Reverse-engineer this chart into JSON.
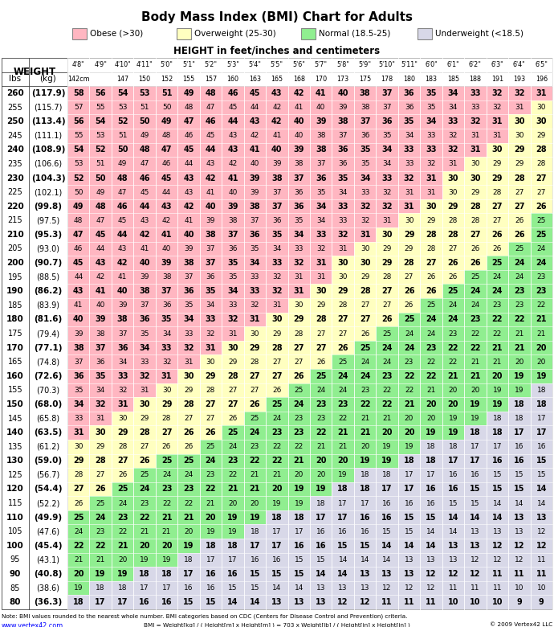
{
  "title": "Body Mass Index (BMI) Chart for Adults",
  "height_labels": [
    "4'8\"",
    "4'9\"",
    "4'10\"",
    "4'11\"",
    "5'0\"",
    "5'1\"",
    "5'2\"",
    "5'3\"",
    "5'4\"",
    "5'5\"",
    "5'6\"",
    "5'7\"",
    "5'8\"",
    "5'9\"",
    "5'10\"",
    "5'11\"",
    "6'0\"",
    "6'1\"",
    "6'2\"",
    "6'3\"",
    "6'4\"",
    "6'5\""
  ],
  "height_cm": [
    "142cm",
    "",
    "147",
    "150",
    "152",
    "155",
    "157",
    "160",
    "163",
    "165",
    "168",
    "170",
    "173",
    "175",
    "178",
    "180",
    "183",
    "185",
    "188",
    "191",
    "193",
    "196"
  ],
  "weight_lbs": [
    260,
    255,
    250,
    245,
    240,
    235,
    230,
    225,
    220,
    215,
    210,
    205,
    200,
    195,
    190,
    185,
    180,
    175,
    170,
    165,
    160,
    155,
    150,
    145,
    140,
    135,
    130,
    125,
    120,
    115,
    110,
    105,
    100,
    95,
    90,
    85,
    80
  ],
  "weight_kg": [
    "117.9",
    "115.7",
    "113.4",
    "111.1",
    "108.9",
    "106.6",
    "104.3",
    "102.1",
    "99.8",
    "97.5",
    "95.3",
    "93.0",
    "90.7",
    "88.5",
    "86.2",
    "83.9",
    "81.6",
    "79.4",
    "77.1",
    "74.8",
    "72.6",
    "70.3",
    "68.0",
    "65.8",
    "63.5",
    "61.2",
    "59.0",
    "56.7",
    "54.4",
    "52.2",
    "49.9",
    "47.6",
    "45.4",
    "43.1",
    "40.8",
    "38.6",
    "36.3"
  ],
  "bold_rows": [
    260,
    250,
    240,
    230,
    220,
    210,
    200,
    190,
    180,
    170,
    160,
    150,
    140,
    130,
    120,
    110,
    100,
    90,
    80
  ],
  "bmi_values": [
    [
      58,
      56,
      54,
      53,
      51,
      49,
      48,
      46,
      45,
      43,
      42,
      41,
      40,
      38,
      37,
      36,
      35,
      34,
      33,
      32,
      32,
      31
    ],
    [
      57,
      55,
      53,
      51,
      50,
      48,
      47,
      45,
      44,
      42,
      41,
      40,
      39,
      38,
      37,
      36,
      35,
      34,
      33,
      32,
      31,
      30
    ],
    [
      56,
      54,
      52,
      50,
      49,
      47,
      46,
      44,
      43,
      42,
      40,
      39,
      38,
      37,
      36,
      35,
      34,
      33,
      32,
      31,
      30,
      30
    ],
    [
      55,
      53,
      51,
      49,
      48,
      46,
      45,
      43,
      42,
      41,
      40,
      38,
      37,
      36,
      35,
      34,
      33,
      32,
      31,
      31,
      30,
      29
    ],
    [
      54,
      52,
      50,
      48,
      47,
      45,
      44,
      43,
      41,
      40,
      39,
      38,
      36,
      35,
      34,
      33,
      33,
      32,
      31,
      30,
      29,
      28
    ],
    [
      53,
      51,
      49,
      47,
      46,
      44,
      43,
      42,
      40,
      39,
      38,
      37,
      36,
      35,
      34,
      33,
      32,
      31,
      30,
      29,
      29,
      28
    ],
    [
      52,
      50,
      48,
      46,
      45,
      43,
      42,
      41,
      39,
      38,
      37,
      36,
      35,
      34,
      33,
      32,
      31,
      30,
      30,
      29,
      28,
      27
    ],
    [
      50,
      49,
      47,
      45,
      44,
      43,
      41,
      40,
      39,
      37,
      36,
      35,
      34,
      33,
      32,
      31,
      31,
      30,
      29,
      28,
      27,
      27
    ],
    [
      49,
      48,
      46,
      44,
      43,
      42,
      40,
      39,
      38,
      37,
      36,
      34,
      33,
      32,
      32,
      31,
      30,
      29,
      28,
      27,
      27,
      26
    ],
    [
      48,
      47,
      45,
      43,
      42,
      41,
      39,
      38,
      37,
      36,
      35,
      34,
      33,
      32,
      31,
      30,
      29,
      28,
      28,
      27,
      26,
      25
    ],
    [
      47,
      45,
      44,
      42,
      41,
      40,
      38,
      37,
      36,
      35,
      34,
      33,
      32,
      31,
      30,
      29,
      28,
      28,
      27,
      26,
      26,
      25
    ],
    [
      46,
      44,
      43,
      41,
      40,
      39,
      37,
      36,
      35,
      34,
      33,
      32,
      31,
      30,
      29,
      29,
      28,
      27,
      26,
      26,
      25,
      24
    ],
    [
      45,
      43,
      42,
      40,
      39,
      38,
      37,
      35,
      34,
      33,
      32,
      31,
      30,
      30,
      29,
      28,
      27,
      26,
      26,
      25,
      24,
      24
    ],
    [
      44,
      42,
      41,
      39,
      38,
      37,
      36,
      35,
      33,
      32,
      31,
      31,
      30,
      29,
      28,
      27,
      26,
      26,
      25,
      24,
      24,
      23
    ],
    [
      43,
      41,
      40,
      38,
      37,
      36,
      35,
      34,
      33,
      32,
      31,
      30,
      29,
      28,
      27,
      26,
      26,
      25,
      24,
      24,
      23,
      23
    ],
    [
      41,
      40,
      39,
      37,
      36,
      35,
      34,
      33,
      32,
      31,
      30,
      29,
      28,
      27,
      27,
      26,
      25,
      24,
      24,
      23,
      23,
      22
    ],
    [
      40,
      39,
      38,
      36,
      35,
      34,
      33,
      32,
      31,
      30,
      29,
      28,
      27,
      27,
      26,
      25,
      24,
      24,
      23,
      22,
      22,
      21
    ],
    [
      39,
      38,
      37,
      35,
      34,
      33,
      32,
      31,
      30,
      29,
      28,
      27,
      27,
      26,
      25,
      24,
      24,
      23,
      22,
      22,
      21,
      21
    ],
    [
      38,
      37,
      36,
      34,
      33,
      32,
      31,
      30,
      29,
      28,
      27,
      27,
      26,
      25,
      24,
      24,
      23,
      22,
      22,
      21,
      21,
      20
    ],
    [
      37,
      36,
      34,
      33,
      32,
      31,
      30,
      29,
      28,
      27,
      27,
      26,
      25,
      24,
      24,
      23,
      22,
      22,
      21,
      21,
      20,
      20
    ],
    [
      36,
      35,
      33,
      32,
      31,
      30,
      29,
      28,
      27,
      27,
      26,
      25,
      24,
      24,
      23,
      22,
      22,
      21,
      21,
      20,
      19,
      19
    ],
    [
      35,
      34,
      32,
      31,
      30,
      29,
      28,
      27,
      27,
      26,
      25,
      24,
      24,
      23,
      22,
      22,
      21,
      20,
      20,
      19,
      19,
      18
    ],
    [
      34,
      32,
      31,
      30,
      29,
      28,
      27,
      27,
      26,
      25,
      24,
      23,
      23,
      22,
      22,
      21,
      20,
      20,
      19,
      19,
      18,
      18
    ],
    [
      33,
      31,
      30,
      29,
      28,
      27,
      27,
      26,
      25,
      24,
      23,
      23,
      22,
      21,
      21,
      20,
      20,
      19,
      19,
      18,
      18,
      17
    ],
    [
      31,
      30,
      29,
      28,
      27,
      26,
      26,
      25,
      24,
      23,
      23,
      22,
      21,
      21,
      20,
      20,
      19,
      19,
      18,
      18,
      17,
      17
    ],
    [
      30,
      29,
      28,
      27,
      26,
      26,
      25,
      24,
      23,
      22,
      22,
      21,
      21,
      20,
      19,
      19,
      18,
      18,
      17,
      17,
      16,
      16
    ],
    [
      29,
      28,
      27,
      26,
      25,
      25,
      24,
      23,
      22,
      22,
      21,
      20,
      20,
      19,
      19,
      18,
      18,
      17,
      17,
      16,
      16,
      15
    ],
    [
      28,
      27,
      26,
      25,
      24,
      24,
      23,
      22,
      21,
      21,
      20,
      20,
      19,
      18,
      18,
      17,
      17,
      16,
      16,
      15,
      15,
      15
    ],
    [
      27,
      26,
      25,
      24,
      23,
      23,
      22,
      21,
      21,
      20,
      19,
      19,
      18,
      18,
      17,
      17,
      16,
      16,
      15,
      15,
      15,
      14
    ],
    [
      26,
      25,
      24,
      23,
      22,
      22,
      21,
      20,
      20,
      19,
      19,
      18,
      17,
      17,
      16,
      16,
      16,
      15,
      15,
      14,
      14,
      14
    ],
    [
      25,
      24,
      23,
      22,
      21,
      21,
      20,
      19,
      19,
      18,
      18,
      17,
      17,
      16,
      16,
      15,
      15,
      14,
      14,
      14,
      13,
      13
    ],
    [
      24,
      23,
      22,
      21,
      21,
      20,
      19,
      19,
      18,
      17,
      17,
      16,
      16,
      16,
      15,
      15,
      14,
      14,
      13,
      13,
      13,
      12
    ],
    [
      22,
      22,
      21,
      20,
      20,
      19,
      18,
      18,
      17,
      17,
      16,
      16,
      15,
      15,
      14,
      14,
      14,
      13,
      13,
      12,
      12,
      12
    ],
    [
      21,
      21,
      20,
      19,
      19,
      18,
      17,
      17,
      16,
      16,
      15,
      15,
      14,
      14,
      14,
      13,
      13,
      13,
      12,
      12,
      12,
      11
    ],
    [
      20,
      19,
      19,
      18,
      18,
      17,
      16,
      16,
      15,
      15,
      15,
      14,
      14,
      13,
      13,
      13,
      12,
      12,
      12,
      11,
      11,
      11
    ],
    [
      19,
      18,
      18,
      17,
      17,
      16,
      16,
      15,
      15,
      14,
      14,
      13,
      13,
      13,
      12,
      12,
      12,
      11,
      11,
      11,
      10,
      10
    ],
    [
      18,
      17,
      17,
      16,
      16,
      15,
      15,
      14,
      14,
      13,
      13,
      13,
      12,
      12,
      11,
      11,
      11,
      10,
      10,
      10,
      9,
      9
    ]
  ],
  "obese_color": "#FFB6C1",
  "overweight_color": "#FFFFC0",
  "normal_color": "#90EE90",
  "underweight_color": "#D8D8E8",
  "note_text": "Note: BMI values rounded to the nearest whole number. BMI categories based on CDC (Centers for Disease Control and Prevention) criteria.",
  "formula_text": "BMI = Weight[kg] / ( Height[m] x Height[m] ) = 703 x Weight[lb] / ( Height[in] x Height[in] )",
  "website": "www.vertex42.com",
  "copyright": "© 2009 Vertex42 LLC"
}
